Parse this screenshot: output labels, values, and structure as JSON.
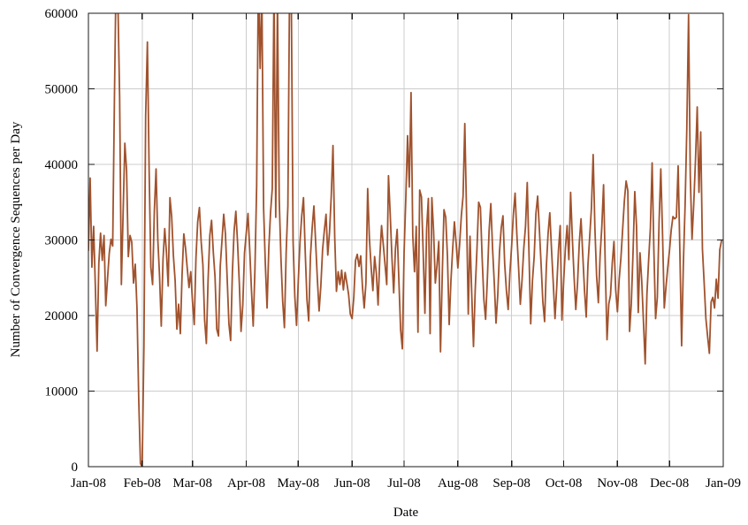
{
  "figure": {
    "background": "#ffffff"
  },
  "chart_data": {
    "type": "line",
    "title": "",
    "xlabel": "Date",
    "ylabel": "Number of Convergence Sequences per Day",
    "legend": "none",
    "grid": true,
    "grid_color": "#cccccc",
    "axis_color": "#1a1a1a",
    "line_color": "#a0522d",
    "line_width": 1.8,
    "ylim": [
      0,
      60000
    ],
    "y_ticks": [
      0,
      10000,
      20000,
      30000,
      40000,
      50000,
      60000
    ],
    "x_tick_labels": [
      "Jan-08",
      "Feb-08",
      "Mar-08",
      "Apr-08",
      "May-08",
      "Jun-08",
      "Jul-08",
      "Aug-08",
      "Sep-08",
      "Oct-08",
      "Nov-08",
      "Dec-08",
      "Jan-09"
    ],
    "x_tick_day_offsets": [
      0,
      31,
      60,
      91,
      121,
      152,
      182,
      213,
      244,
      274,
      305,
      335,
      366
    ],
    "x_start": "Jan-08",
    "x_total_days": 366,
    "clip_note": "values above 60000 are clipped at the top frame",
    "values_daily": [
      28600,
      38200,
      26400,
      31800,
      23800,
      15300,
      26900,
      30900,
      27300,
      30600,
      21300,
      24800,
      28200,
      30100,
      29200,
      48800,
      66000,
      61500,
      48900,
      24100,
      33500,
      42800,
      39200,
      27800,
      30600,
      29700,
      24300,
      26800,
      21000,
      9000,
      400,
      0,
      16000,
      46500,
      56200,
      39300,
      26400,
      24100,
      33800,
      39400,
      30100,
      25300,
      18600,
      27400,
      31500,
      28300,
      23900,
      35600,
      33100,
      27900,
      24600,
      18200,
      21500,
      17600,
      25400,
      30800,
      28900,
      26200,
      23700,
      25800,
      21900,
      18800,
      27600,
      32400,
      34300,
      29800,
      26700,
      19400,
      16300,
      24800,
      30600,
      32600,
      28400,
      25100,
      18200,
      17300,
      26500,
      29900,
      33400,
      30800,
      24900,
      18900,
      16700,
      25700,
      31200,
      33800,
      29600,
      24300,
      17900,
      21400,
      28300,
      30900,
      33500,
      28700,
      23400,
      18600,
      26100,
      37200,
      65500,
      52700,
      62800,
      34200,
      26800,
      21000,
      28900,
      33600,
      36800,
      63500,
      33000,
      61800,
      35400,
      27600,
      21900,
      18400,
      28300,
      34500,
      64200,
      61200,
      29800,
      22500,
      18700,
      24600,
      29800,
      33200,
      35600,
      28400,
      22100,
      19300,
      27800,
      31600,
      34500,
      29700,
      24800,
      20600,
      23900,
      28700,
      31200,
      33400,
      28000,
      31000,
      35800,
      42500,
      30400,
      23200,
      25800,
      24100,
      26000,
      23400,
      25700,
      24300,
      22800,
      20200,
      19600,
      22400,
      27300,
      28100,
      26500,
      27900,
      23800,
      21000,
      24300,
      36800,
      30200,
      26400,
      23300,
      27800,
      25600,
      21400,
      27700,
      31900,
      29400,
      26800,
      24100,
      38500,
      33400,
      27600,
      23000,
      28800,
      31400,
      24600,
      18100,
      15600,
      28400,
      35600,
      43800,
      37000,
      49500,
      30600,
      25800,
      31800,
      17800,
      36600,
      35700,
      28400,
      20300,
      31500,
      35500,
      17600,
      35600,
      31200,
      24300,
      26700,
      29800,
      15200,
      25400,
      34000,
      33000,
      27800,
      18800,
      24600,
      28800,
      32400,
      29600,
      26300,
      29400,
      33200,
      35800,
      45400,
      33600,
      20200,
      30500,
      22800,
      15900,
      23400,
      28700,
      35000,
      34300,
      27600,
      22100,
      19500,
      24800,
      31200,
      34800,
      28900,
      24300,
      19000,
      22700,
      28400,
      31600,
      33200,
      26800,
      23300,
      20800,
      25600,
      29200,
      33400,
      36200,
      30800,
      26400,
      21500,
      24700,
      28900,
      31800,
      37600,
      28300,
      18900,
      24600,
      27800,
      33500,
      35800,
      31400,
      26700,
      21800,
      19200,
      26400,
      30800,
      33600,
      28700,
      24300,
      19600,
      23800,
      28600,
      31900,
      19400,
      24600,
      28900,
      31900,
      27400,
      36300,
      30200,
      25100,
      20800,
      24300,
      29600,
      32800,
      28100,
      23400,
      19800,
      26700,
      30400,
      34200,
      41300,
      31600,
      25200,
      21700,
      27900,
      31800,
      37300,
      26400,
      16800,
      21500,
      22700,
      26900,
      29800,
      23400,
      20500,
      24800,
      27600,
      31400,
      35200,
      37800,
      36500,
      17900,
      21600,
      28400,
      36400,
      31800,
      20400,
      28300,
      24600,
      19200,
      13600,
      22800,
      27400,
      31600,
      40200,
      28700,
      19600,
      22400,
      32400,
      39400,
      30800,
      21000,
      23800,
      26300,
      28600,
      31300,
      33100,
      32800,
      33000,
      39800,
      28400,
      16000,
      26800,
      34500,
      44800,
      59800,
      38500,
      30100,
      34800,
      40600,
      47600,
      36300,
      44300,
      28800,
      24300,
      19600,
      17200,
      15000,
      21800,
      22400,
      21000,
      24800,
      22300,
      28700,
      29900
    ]
  }
}
